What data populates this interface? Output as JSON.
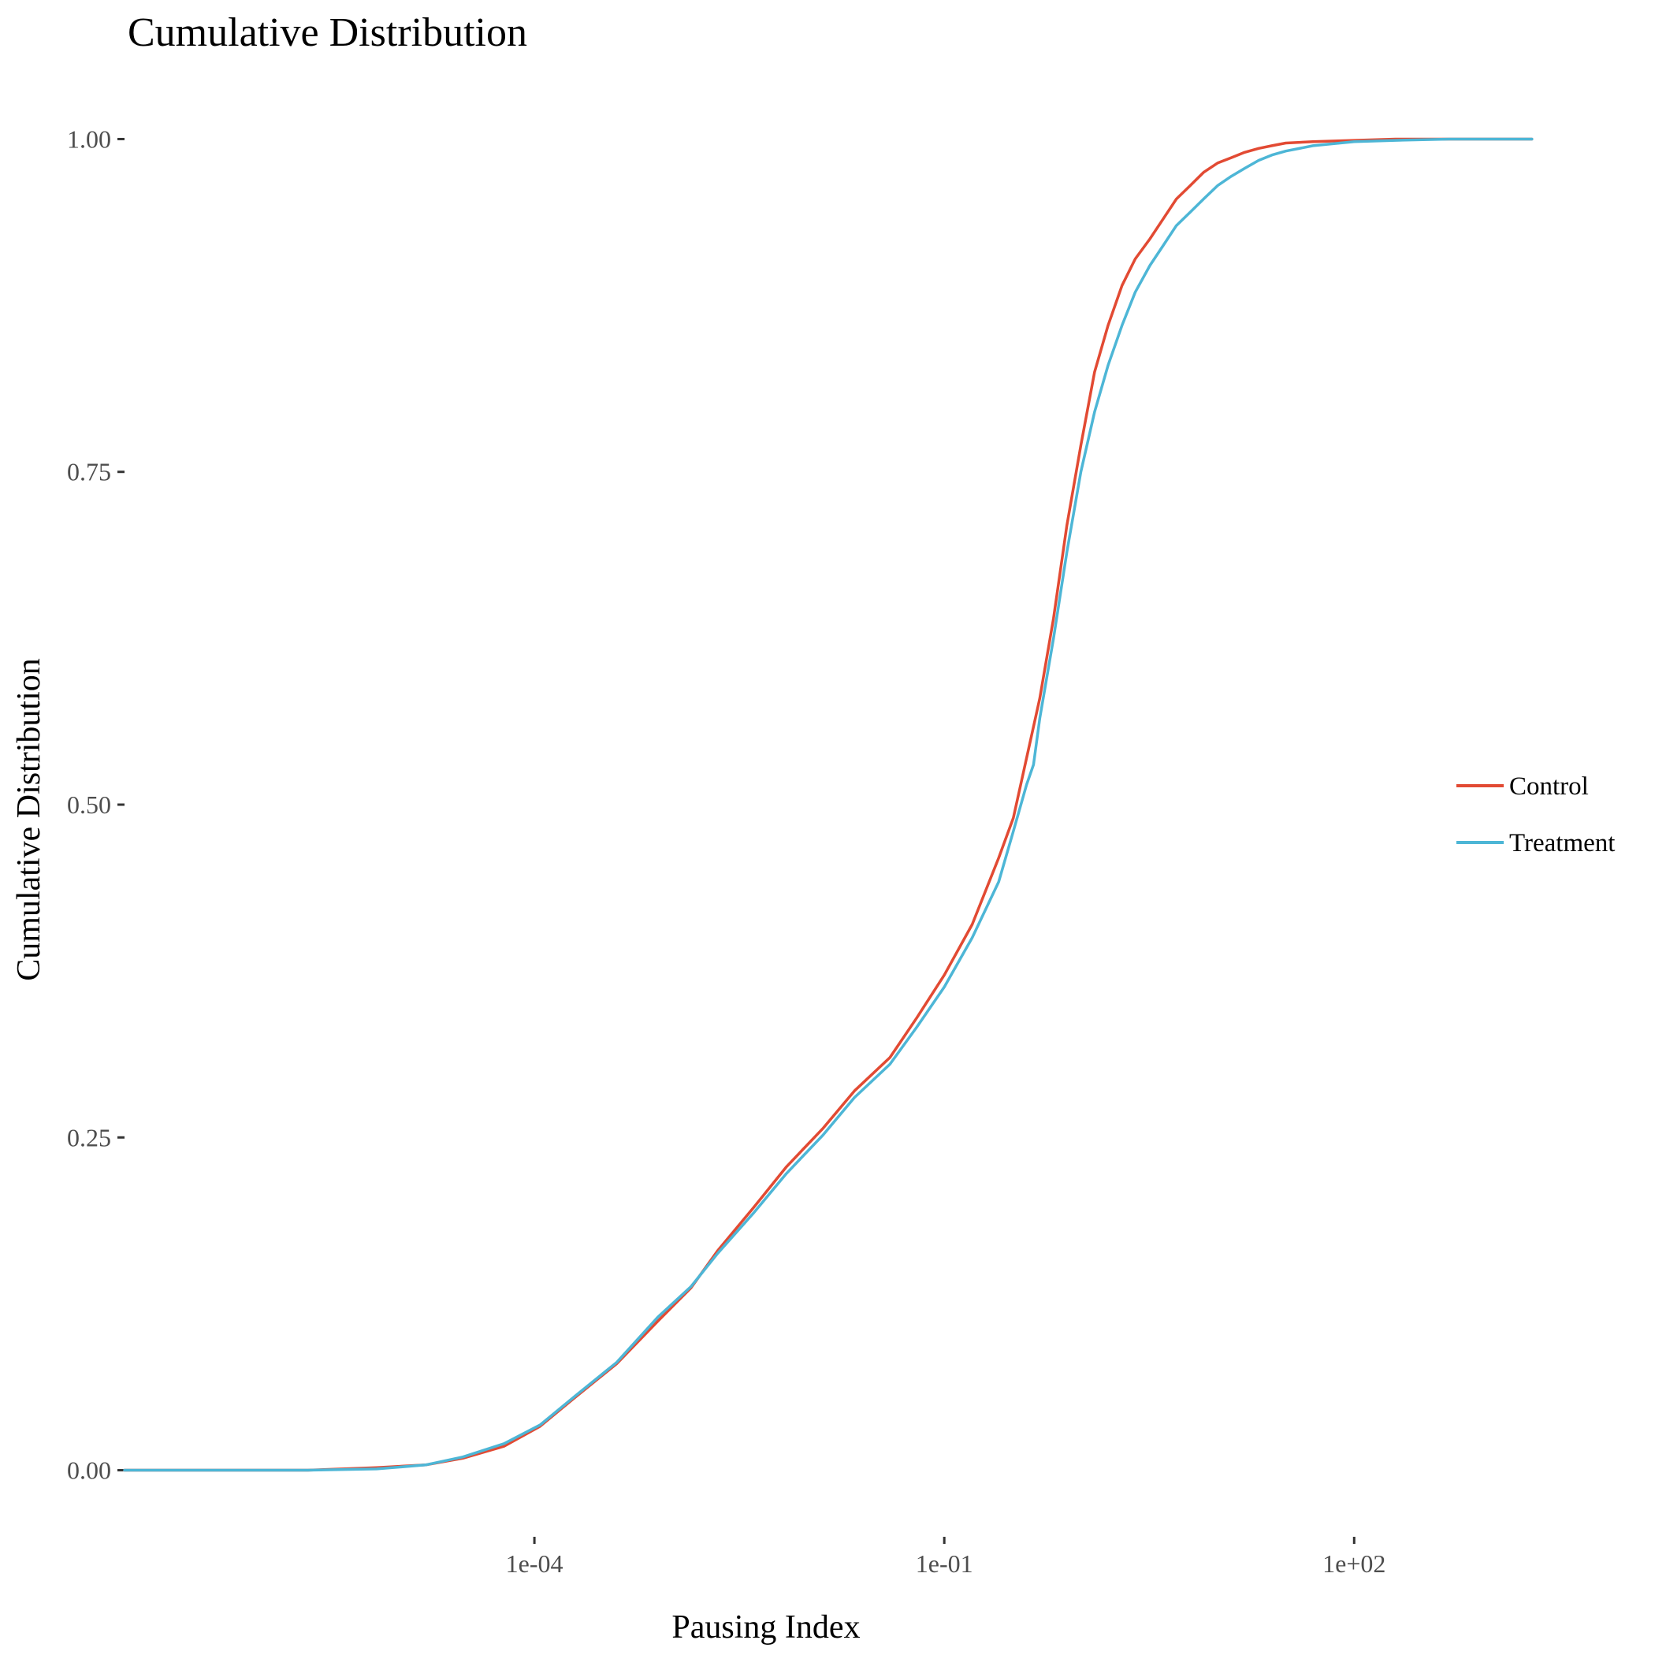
{
  "chart_data": {
    "type": "line",
    "title": "Cumulative Distribution",
    "xlabel": "Pausing Index",
    "ylabel": "Cumulative Distribution",
    "x_scale": "log10",
    "xlim": [
      1e-07,
      10000.0
    ],
    "ylim": [
      -0.05,
      1.05
    ],
    "x_ticks": [
      {
        "value": 0.0001,
        "label": "1e-04"
      },
      {
        "value": 0.1,
        "label": "1e-01"
      },
      {
        "value": 100,
        "label": "1e+02"
      }
    ],
    "y_ticks": [
      {
        "value": 0.0,
        "label": "0.00"
      },
      {
        "value": 0.25,
        "label": "0.25"
      },
      {
        "value": 0.5,
        "label": "0.50"
      },
      {
        "value": 0.75,
        "label": "0.75"
      },
      {
        "value": 1.0,
        "label": "1.00"
      }
    ],
    "grid": false,
    "legend_position": "right",
    "series": [
      {
        "name": "Control",
        "color": "#e24a33",
        "x": [
          1e-07,
          2.2e-06,
          7e-06,
          1.6e-05,
          3e-05,
          6e-05,
          0.00011,
          0.0002,
          0.0004,
          0.0008,
          0.0014,
          0.0022,
          0.004,
          0.007,
          0.013,
          0.022,
          0.04,
          0.063,
          0.1,
          0.16,
          0.25,
          0.32,
          0.4,
          0.5,
          0.63,
          0.79,
          1.0,
          1.26,
          1.58,
          2.0,
          2.5,
          3.2,
          4.0,
          5.0,
          6.3,
          7.9,
          10,
          12.6,
          15.8,
          20,
          25,
          31.6,
          50,
          100,
          200,
          500,
          1000,
          2000
        ],
        "y": [
          0.0,
          0.0,
          0.002,
          0.004,
          0.009,
          0.018,
          0.033,
          0.055,
          0.08,
          0.112,
          0.137,
          0.165,
          0.197,
          0.228,
          0.257,
          0.285,
          0.31,
          0.34,
          0.372,
          0.41,
          0.46,
          0.49,
          0.535,
          0.58,
          0.64,
          0.71,
          0.77,
          0.825,
          0.86,
          0.89,
          0.91,
          0.925,
          0.94,
          0.955,
          0.965,
          0.975,
          0.982,
          0.986,
          0.99,
          0.993,
          0.995,
          0.997,
          0.998,
          0.999,
          1.0,
          1.0,
          1.0,
          1.0
        ]
      },
      {
        "name": "Treatment",
        "color": "#4db6d6",
        "x": [
          1e-07,
          2.2e-06,
          7e-06,
          1.6e-05,
          3e-05,
          6e-05,
          0.00011,
          0.0002,
          0.0004,
          0.0008,
          0.0014,
          0.0022,
          0.004,
          0.007,
          0.013,
          0.022,
          0.04,
          0.063,
          0.1,
          0.16,
          0.25,
          0.32,
          0.4,
          0.45,
          0.5,
          0.63,
          0.79,
          1.0,
          1.26,
          1.58,
          2.0,
          2.5,
          3.2,
          4.0,
          5.0,
          6.3,
          7.9,
          10,
          12.6,
          15.8,
          20,
          25,
          31.6,
          50,
          100,
          200,
          500,
          1000,
          2000
        ],
        "y": [
          0.0,
          0.0,
          0.001,
          0.004,
          0.01,
          0.02,
          0.034,
          0.056,
          0.081,
          0.115,
          0.138,
          0.163,
          0.193,
          0.223,
          0.252,
          0.28,
          0.305,
          0.333,
          0.363,
          0.4,
          0.442,
          0.48,
          0.515,
          0.53,
          0.565,
          0.625,
          0.69,
          0.75,
          0.795,
          0.83,
          0.86,
          0.885,
          0.905,
          0.92,
          0.935,
          0.945,
          0.955,
          0.965,
          0.972,
          0.978,
          0.984,
          0.988,
          0.991,
          0.995,
          0.998,
          0.999,
          1.0,
          1.0,
          1.0
        ]
      }
    ]
  }
}
